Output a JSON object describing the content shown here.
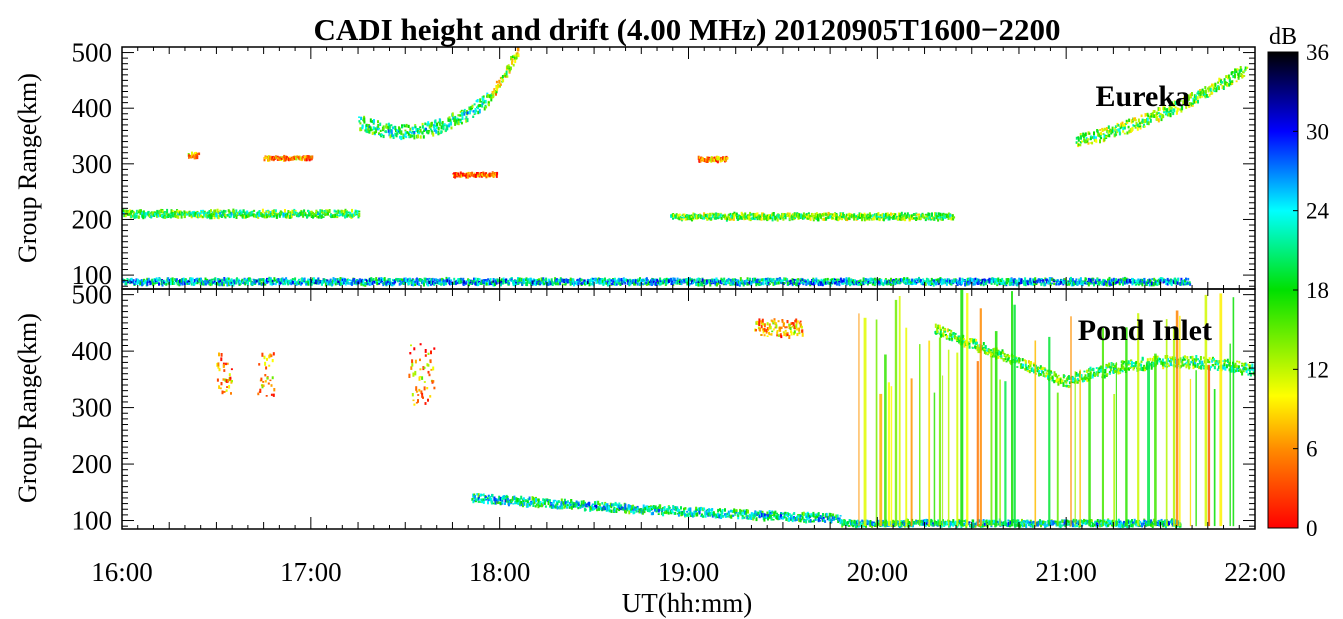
{
  "chart_data": {
    "type": "heatmap",
    "title": "CADI height and drift (4.00 MHz) 20120905T1600−2200",
    "xlabel": "UT(hh:mm)",
    "x_range": [
      "16:00",
      "22:00"
    ],
    "x_ticks": [
      "16:00",
      "17:00",
      "18:00",
      "19:00",
      "20:00",
      "21:00",
      "22:00"
    ],
    "colorbar": {
      "label": "dB",
      "range": [
        0,
        36
      ],
      "ticks": [
        "0",
        "6",
        "12",
        "18",
        "24",
        "30",
        "36"
      ],
      "stops": [
        {
          "db": 0,
          "color": "#ff0000"
        },
        {
          "db": 6,
          "color": "#ff8c00"
        },
        {
          "db": 10,
          "color": "#ffff00"
        },
        {
          "db": 18,
          "color": "#00e000"
        },
        {
          "db": 24,
          "color": "#00ffff"
        },
        {
          "db": 30,
          "color": "#0000ff"
        },
        {
          "db": 36,
          "color": "#000000"
        }
      ]
    },
    "panels": [
      {
        "station": "Eureka",
        "ylabel": "Group Range(km)",
        "ylim": [
          75,
          510
        ],
        "y_ticks": [
          "100",
          "200",
          "300",
          "400",
          "500"
        ],
        "echo_traces": [
          {
            "t_start": 16.0,
            "t_end": 21.65,
            "range_km": 88,
            "db": 26,
            "thickness_km": 10
          },
          {
            "t_start": 16.0,
            "t_end": 17.25,
            "range_km": 210,
            "db": 20,
            "thickness_km": 12
          },
          {
            "t_start": 18.9,
            "t_end": 20.4,
            "range_km": 205,
            "db": 18,
            "thickness_km": 10
          },
          {
            "t_start": 17.25,
            "t_end": 17.95,
            "range_km_start": 375,
            "range_km_end": 420,
            "range_km_min": 338,
            "db": 22,
            "thickness_km": 25
          },
          {
            "t_start": 17.95,
            "t_end": 18.1,
            "range_km_start": 420,
            "range_km_end": 505,
            "db": 14,
            "thickness_km": 20
          },
          {
            "t_start": 21.05,
            "t_end": 21.95,
            "range_km_start": 340,
            "range_km_end": 470,
            "range_km_min": 325,
            "db": 18,
            "thickness_km": 22
          },
          {
            "t_start": 16.35,
            "t_end": 16.4,
            "range_km": 315,
            "db": 10,
            "thickness_km": 8
          },
          {
            "t_start": 16.75,
            "t_end": 17.0,
            "range_km": 310,
            "db": 8,
            "thickness_km": 6
          },
          {
            "t_start": 17.75,
            "t_end": 17.98,
            "range_km": 280,
            "db": 6,
            "thickness_km": 6
          },
          {
            "t_start": 19.05,
            "t_end": 19.2,
            "range_km": 308,
            "db": 8,
            "thickness_km": 6
          }
        ]
      },
      {
        "station": "Pond Inlet",
        "ylabel": "Group Range(km)",
        "ylim": [
          85,
          510
        ],
        "y_ticks": [
          "100",
          "200",
          "300",
          "400",
          "500"
        ],
        "echo_traces": [
          {
            "t_start": 17.85,
            "t_end": 19.8,
            "range_km_start": 140,
            "range_km_end": 103,
            "range_km_min": 100,
            "db": 24,
            "thickness_km": 14
          },
          {
            "t_start": 19.8,
            "t_end": 21.6,
            "range_km": 95,
            "db": 24,
            "thickness_km": 10
          },
          {
            "t_start": 20.3,
            "t_end": 21.0,
            "range_km_start": 440,
            "range_km_end": 345,
            "db": 18,
            "thickness_km": 18
          },
          {
            "t_start": 21.0,
            "t_end": 22.0,
            "range_km_start": 345,
            "range_km_end": 365,
            "range_km_max": 390,
            "db": 20,
            "thickness_km": 20
          },
          {
            "t_start": 16.5,
            "t_end": 16.58,
            "range_km": 360,
            "db": 8,
            "thickness_km": 70
          },
          {
            "t_start": 16.72,
            "t_end": 16.8,
            "range_km": 360,
            "db": 10,
            "thickness_km": 80
          },
          {
            "t_start": 17.52,
            "t_end": 17.65,
            "range_km": 360,
            "db": 9,
            "thickness_km": 110
          },
          {
            "t_start": 19.35,
            "t_end": 19.6,
            "range_km": 440,
            "db": 10,
            "thickness_km": 30
          }
        ],
        "vertical_streaks": {
          "t_start": 19.9,
          "t_end": 21.9,
          "db_range": [
            4,
            20
          ]
        }
      }
    ]
  }
}
